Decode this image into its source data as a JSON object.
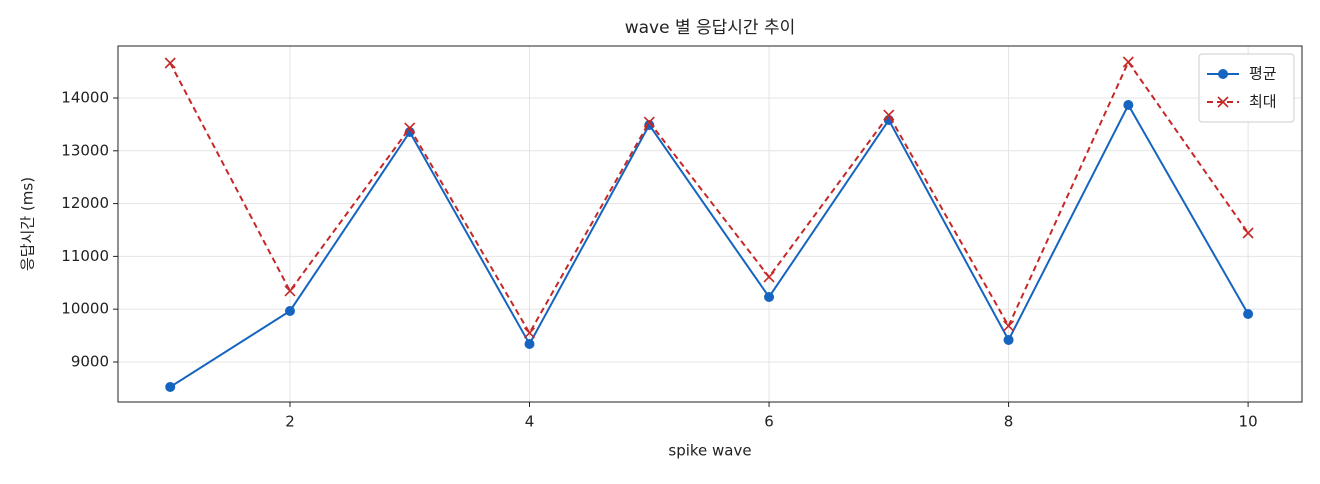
{
  "chart_data": {
    "type": "line",
    "title": "wave 별 응답시간 추이",
    "x_label": "spike wave",
    "y_label": "응답시간 (ms)",
    "x": [
      1,
      2,
      3,
      4,
      5,
      6,
      7,
      8,
      9,
      10
    ],
    "series": [
      {
        "name": "평균",
        "color": "#1565c0",
        "marker": "o",
        "dash": false,
        "values": [
          8527,
          9966,
          13356,
          9341,
          13489,
          10231,
          13583,
          9417,
          13867,
          9909
        ]
      },
      {
        "name": "최대",
        "color": "#c62828",
        "marker": "x",
        "dash": true,
        "values": [
          14663,
          10345,
          13432,
          9549,
          13545,
          10610,
          13678,
          9682,
          14682,
          11443
        ]
      }
    ],
    "xlim": [
      0.564,
      10.45
    ],
    "ylim": [
      8242,
      14985
    ],
    "xticks": [
      2,
      4,
      6,
      8,
      10
    ],
    "yticks": [
      9000,
      10000,
      11000,
      12000,
      13000,
      14000
    ],
    "grid": true,
    "legend": "upper right"
  }
}
